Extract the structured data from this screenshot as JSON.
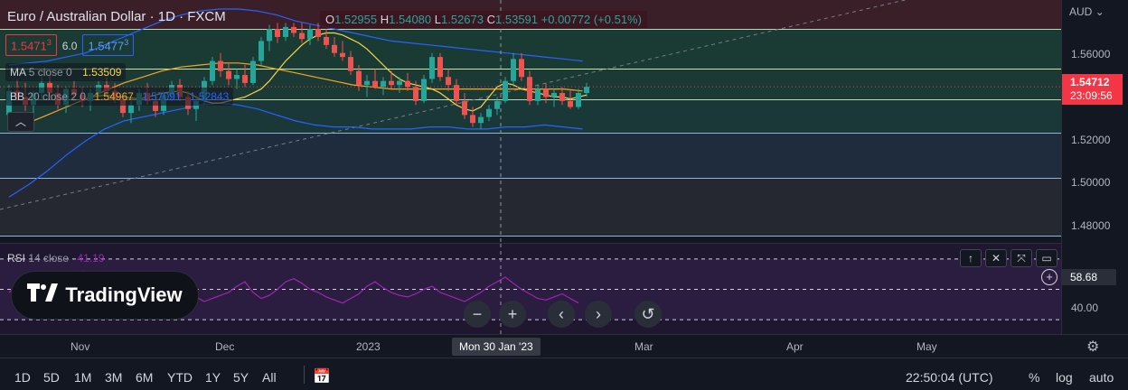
{
  "header": {
    "title": "Euro / Australian Dollar · 1D · FXCM",
    "ohlc": {
      "o_label": "O",
      "o": "1.52955",
      "h_label": "H",
      "h": "1.54080",
      "l_label": "L",
      "l": "1.52673",
      "c_label": "C",
      "c": "1.53591",
      "change": "+0.00772 (+0.51%)"
    }
  },
  "quote": {
    "bid": "1.5471",
    "bid_sup": "3",
    "spread": "6.0",
    "ask": "1.5477",
    "ask_sup": "3"
  },
  "indicators": {
    "ma": {
      "name": "MA",
      "params": "5 close 0",
      "value": "1.53509"
    },
    "bb": {
      "name": "BB",
      "params": "20 close 2 0",
      "basis": "1.54967",
      "upper": "1.57091",
      "lower": "1.52843"
    }
  },
  "price_axis": {
    "currency": "AUD",
    "ticks": [
      "1.56000",
      "1.54000",
      "1.52000",
      "1.50000",
      "1.48000"
    ],
    "current_price": "1.54712",
    "countdown": "23:09:56"
  },
  "rsi": {
    "name": "RSI",
    "params": "14 close",
    "value": "41.19",
    "axis_tick": "40.00",
    "cursor_value": "58.68"
  },
  "branding": {
    "logo_text": "TradingView"
  },
  "time_axis": {
    "ticks": [
      "Nov",
      "Dec",
      "2023",
      "Mar",
      "Apr",
      "May"
    ],
    "cursor_label": "Mon 30 Jan '23"
  },
  "toolbar": {
    "ranges": [
      "1D",
      "5D",
      "1M",
      "3M",
      "6M",
      "YTD",
      "1Y",
      "5Y",
      "All"
    ],
    "clock": "22:50:04 (UTC)",
    "percent": "%",
    "log": "log",
    "auto": "auto"
  },
  "colors": {
    "up": "#26a69a",
    "down": "#ef5350",
    "ma": "#f7d64a",
    "bb_band": "#2962ff",
    "bb_basis": "#f5a623",
    "rsi": "#9c27b0",
    "price_tag": "#f23645"
  },
  "chart_data": {
    "type": "candlestick",
    "candles": [
      {
        "o": 1.533,
        "h": 1.548,
        "l": 1.529,
        "c": 1.545
      },
      {
        "o": 1.545,
        "h": 1.551,
        "l": 1.54,
        "c": 1.542
      },
      {
        "o": 1.542,
        "h": 1.549,
        "l": 1.535,
        "c": 1.538
      },
      {
        "o": 1.538,
        "h": 1.545,
        "l": 1.53,
        "c": 1.544
      },
      {
        "o": 1.544,
        "h": 1.552,
        "l": 1.541,
        "c": 1.549
      },
      {
        "o": 1.549,
        "h": 1.553,
        "l": 1.542,
        "c": 1.544
      },
      {
        "o": 1.544,
        "h": 1.548,
        "l": 1.536,
        "c": 1.538
      },
      {
        "o": 1.538,
        "h": 1.547,
        "l": 1.534,
        "c": 1.546
      },
      {
        "o": 1.546,
        "h": 1.55,
        "l": 1.54,
        "c": 1.543
      },
      {
        "o": 1.543,
        "h": 1.547,
        "l": 1.537,
        "c": 1.54
      },
      {
        "o": 1.54,
        "h": 1.546,
        "l": 1.535,
        "c": 1.544
      },
      {
        "o": 1.544,
        "h": 1.55,
        "l": 1.542,
        "c": 1.548
      },
      {
        "o": 1.548,
        "h": 1.552,
        "l": 1.543,
        "c": 1.545
      },
      {
        "o": 1.545,
        "h": 1.549,
        "l": 1.539,
        "c": 1.541
      },
      {
        "o": 1.541,
        "h": 1.544,
        "l": 1.532,
        "c": 1.534
      },
      {
        "o": 1.534,
        "h": 1.54,
        "l": 1.529,
        "c": 1.538
      },
      {
        "o": 1.538,
        "h": 1.546,
        "l": 1.535,
        "c": 1.544
      },
      {
        "o": 1.544,
        "h": 1.549,
        "l": 1.538,
        "c": 1.54
      },
      {
        "o": 1.54,
        "h": 1.543,
        "l": 1.532,
        "c": 1.535
      },
      {
        "o": 1.535,
        "h": 1.545,
        "l": 1.533,
        "c": 1.543
      },
      {
        "o": 1.543,
        "h": 1.55,
        "l": 1.54,
        "c": 1.548
      },
      {
        "o": 1.548,
        "h": 1.551,
        "l": 1.54,
        "c": 1.542
      },
      {
        "o": 1.542,
        "h": 1.545,
        "l": 1.533,
        "c": 1.536
      },
      {
        "o": 1.536,
        "h": 1.542,
        "l": 1.53,
        "c": 1.54
      },
      {
        "o": 1.54,
        "h": 1.552,
        "l": 1.538,
        "c": 1.55
      },
      {
        "o": 1.55,
        "h": 1.562,
        "l": 1.548,
        "c": 1.56
      },
      {
        "o": 1.56,
        "h": 1.564,
        "l": 1.552,
        "c": 1.555
      },
      {
        "o": 1.555,
        "h": 1.559,
        "l": 1.548,
        "c": 1.551
      },
      {
        "o": 1.551,
        "h": 1.556,
        "l": 1.546,
        "c": 1.553
      },
      {
        "o": 1.553,
        "h": 1.558,
        "l": 1.547,
        "c": 1.549
      },
      {
        "o": 1.549,
        "h": 1.562,
        "l": 1.548,
        "c": 1.56
      },
      {
        "o": 1.56,
        "h": 1.572,
        "l": 1.558,
        "c": 1.57
      },
      {
        "o": 1.57,
        "h": 1.578,
        "l": 1.565,
        "c": 1.576
      },
      {
        "o": 1.576,
        "h": 1.579,
        "l": 1.569,
        "c": 1.572
      },
      {
        "o": 1.572,
        "h": 1.579,
        "l": 1.57,
        "c": 1.577
      },
      {
        "o": 1.577,
        "h": 1.579,
        "l": 1.572,
        "c": 1.574
      },
      {
        "o": 1.574,
        "h": 1.579,
        "l": 1.569,
        "c": 1.571
      },
      {
        "o": 1.571,
        "h": 1.578,
        "l": 1.568,
        "c": 1.576
      },
      {
        "o": 1.576,
        "h": 1.579,
        "l": 1.57,
        "c": 1.572
      },
      {
        "o": 1.572,
        "h": 1.576,
        "l": 1.566,
        "c": 1.568
      },
      {
        "o": 1.568,
        "h": 1.572,
        "l": 1.562,
        "c": 1.564
      },
      {
        "o": 1.564,
        "h": 1.57,
        "l": 1.56,
        "c": 1.562
      },
      {
        "o": 1.562,
        "h": 1.565,
        "l": 1.553,
        "c": 1.555
      },
      {
        "o": 1.555,
        "h": 1.558,
        "l": 1.545,
        "c": 1.548
      },
      {
        "o": 1.548,
        "h": 1.553,
        "l": 1.542,
        "c": 1.55
      },
      {
        "o": 1.55,
        "h": 1.556,
        "l": 1.546,
        "c": 1.547
      },
      {
        "o": 1.547,
        "h": 1.552,
        "l": 1.543,
        "c": 1.55
      },
      {
        "o": 1.55,
        "h": 1.555,
        "l": 1.546,
        "c": 1.548
      },
      {
        "o": 1.548,
        "h": 1.552,
        "l": 1.544,
        "c": 1.55
      },
      {
        "o": 1.55,
        "h": 1.554,
        "l": 1.545,
        "c": 1.547
      },
      {
        "o": 1.547,
        "h": 1.55,
        "l": 1.538,
        "c": 1.54
      },
      {
        "o": 1.54,
        "h": 1.553,
        "l": 1.539,
        "c": 1.551
      },
      {
        "o": 1.551,
        "h": 1.564,
        "l": 1.549,
        "c": 1.562
      },
      {
        "o": 1.562,
        "h": 1.564,
        "l": 1.55,
        "c": 1.552
      },
      {
        "o": 1.552,
        "h": 1.556,
        "l": 1.545,
        "c": 1.548
      },
      {
        "o": 1.548,
        "h": 1.551,
        "l": 1.538,
        "c": 1.54
      },
      {
        "o": 1.54,
        "h": 1.544,
        "l": 1.531,
        "c": 1.533
      },
      {
        "o": 1.533,
        "h": 1.537,
        "l": 1.527,
        "c": 1.529
      },
      {
        "o": 1.529,
        "h": 1.534,
        "l": 1.526,
        "c": 1.532
      },
      {
        "o": 1.532,
        "h": 1.538,
        "l": 1.53,
        "c": 1.536
      },
      {
        "o": 1.536,
        "h": 1.542,
        "l": 1.533,
        "c": 1.54
      },
      {
        "o": 1.54,
        "h": 1.552,
        "l": 1.539,
        "c": 1.55
      },
      {
        "o": 1.55,
        "h": 1.564,
        "l": 1.548,
        "c": 1.561
      },
      {
        "o": 1.561,
        "h": 1.564,
        "l": 1.55,
        "c": 1.552
      },
      {
        "o": 1.552,
        "h": 1.555,
        "l": 1.538,
        "c": 1.54
      },
      {
        "o": 1.54,
        "h": 1.548,
        "l": 1.538,
        "c": 1.546
      },
      {
        "o": 1.546,
        "h": 1.549,
        "l": 1.539,
        "c": 1.542
      },
      {
        "o": 1.542,
        "h": 1.546,
        "l": 1.537,
        "c": 1.544
      },
      {
        "o": 1.544,
        "h": 1.547,
        "l": 1.538,
        "c": 1.54
      },
      {
        "o": 1.54,
        "h": 1.546,
        "l": 1.536,
        "c": 1.537
      },
      {
        "o": 1.537,
        "h": 1.546,
        "l": 1.536,
        "c": 1.544
      },
      {
        "o": 1.544,
        "h": 1.549,
        "l": 1.542,
        "c": 1.5471
      }
    ],
    "ma": [
      1.542,
      1.5425,
      1.543,
      1.542,
      1.542,
      1.5415,
      1.541,
      1.542,
      1.543,
      1.544,
      1.5445,
      1.545,
      1.544,
      1.542,
      1.54,
      1.539,
      1.539,
      1.54,
      1.541,
      1.542,
      1.544,
      1.546,
      1.55,
      1.555,
      1.56,
      1.564,
      1.568,
      1.571,
      1.573,
      1.574,
      1.574,
      1.573,
      1.571,
      1.569,
      1.566,
      1.562,
      1.558,
      1.554,
      1.551,
      1.549,
      1.548,
      1.547,
      1.546,
      1.544,
      1.541,
      1.538,
      1.536,
      1.535,
      1.537,
      1.542,
      1.547,
      1.549,
      1.548,
      1.546,
      1.545,
      1.544,
      1.543,
      1.542,
      1.542,
      1.541,
      1.542,
      1.543
    ],
    "bb_upper": [
      1.558,
      1.559,
      1.56,
      1.562,
      1.564,
      1.568,
      1.572,
      1.576,
      1.58,
      1.583,
      1.585,
      1.586,
      1.586,
      1.585,
      1.583,
      1.58,
      1.578,
      1.576,
      1.574,
      1.572,
      1.57,
      1.569,
      1.568,
      1.567,
      1.566,
      1.565,
      1.564,
      1.563,
      1.562,
      1.561,
      1.56
    ],
    "bb_lower": [
      1.492,
      1.498,
      1.505,
      1.513,
      1.52,
      1.526,
      1.53,
      1.532,
      1.534,
      1.536,
      1.538,
      1.539,
      1.538,
      1.536,
      1.533,
      1.53,
      1.528,
      1.527,
      1.527,
      1.526,
      1.526,
      1.526,
      1.527,
      1.527,
      1.526,
      1.526,
      1.527,
      1.527,
      1.528,
      1.527,
      1.526
    ],
    "bb_basis": [
      1.525,
      1.529,
      1.533,
      1.537,
      1.541,
      1.545,
      1.549,
      1.552,
      1.555,
      1.557,
      1.558,
      1.559,
      1.559,
      1.558,
      1.556,
      1.554,
      1.552,
      1.55,
      1.548,
      1.547,
      1.546,
      1.546,
      1.546,
      1.546,
      1.546,
      1.546,
      1.546,
      1.546,
      1.546,
      1.546,
      1.545
    ],
    "rsi": [
      48,
      52,
      50,
      55,
      53,
      49,
      51,
      56,
      60,
      62,
      58,
      55,
      52,
      48,
      45,
      47,
      52,
      55,
      50,
      46,
      44,
      47,
      49,
      45,
      42,
      44,
      46,
      48,
      52,
      55,
      48,
      44,
      46,
      50,
      55,
      57,
      54,
      50,
      48,
      45,
      43,
      41,
      44,
      47,
      52,
      55,
      51,
      48,
      46,
      45,
      47,
      50,
      52,
      48,
      46,
      44,
      42,
      45,
      48,
      52,
      55,
      58,
      54,
      50,
      47,
      44,
      43,
      45,
      47,
      44,
      41
    ],
    "price_levels": [
      1.573,
      1.554,
      1.536,
      1.523,
      1.502,
      1.476
    ],
    "ylim": [
      1.4695,
      1.5905
    ],
    "rsi_levels": [
      70,
      50,
      30
    ]
  }
}
